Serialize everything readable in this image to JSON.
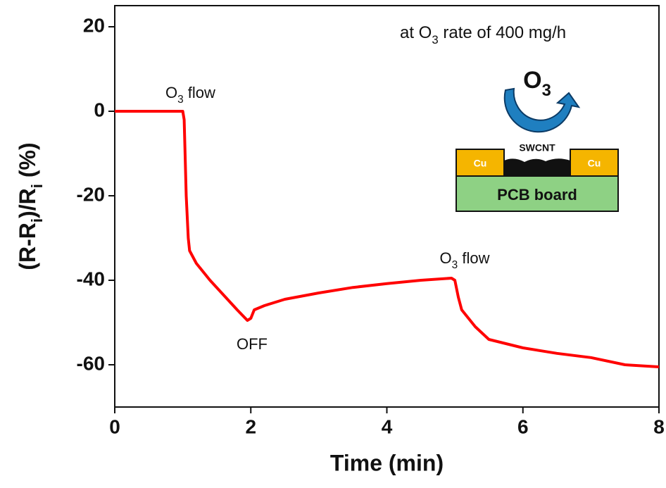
{
  "chart_data": {
    "type": "line",
    "x": [
      0,
      0.5,
      0.9,
      1.0,
      1.02,
      1.05,
      1.08,
      1.1,
      1.2,
      1.4,
      1.6,
      1.8,
      1.95,
      2.0,
      2.05,
      2.2,
      2.5,
      3.0,
      3.5,
      4.0,
      4.5,
      4.95,
      5.0,
      5.05,
      5.1,
      5.3,
      5.5,
      6.0,
      6.5,
      7.0,
      7.5,
      8.0
    ],
    "values": [
      0,
      0,
      0,
      0,
      -2,
      -20,
      -30,
      -33,
      -36,
      -40,
      -43.5,
      -47,
      -49.5,
      -49,
      -47,
      -46,
      -44.5,
      -43,
      -41.7,
      -40.8,
      -40,
      -39.5,
      -40,
      -44,
      -47,
      -51,
      -54,
      -56,
      -57.3,
      -58.3,
      -60,
      -60.5
    ],
    "color": "#ff0000",
    "xlim": [
      0,
      8
    ],
    "xticks": [
      0,
      2,
      4,
      6,
      8
    ],
    "ylim": [
      -70,
      25
    ],
    "yticks": [
      -60,
      -40,
      -20,
      0,
      20
    ],
    "x_label": "Time (min)",
    "y_label": [
      "(R-R",
      "i",
      ")/R",
      "i",
      " (%)"
    ],
    "annotations": [
      [
        "at O",
        "3",
        " rate of 400 mg/h"
      ],
      [
        "O",
        "3",
        " flow"
      ],
      [
        "OFF"
      ],
      [
        "O",
        "3",
        " flow"
      ]
    ]
  },
  "inset": {
    "ozone": [
      "O",
      "3"
    ],
    "swcnt": "SWCNT",
    "cu": [
      "Cu",
      "Cu"
    ],
    "board": "PCB board"
  }
}
